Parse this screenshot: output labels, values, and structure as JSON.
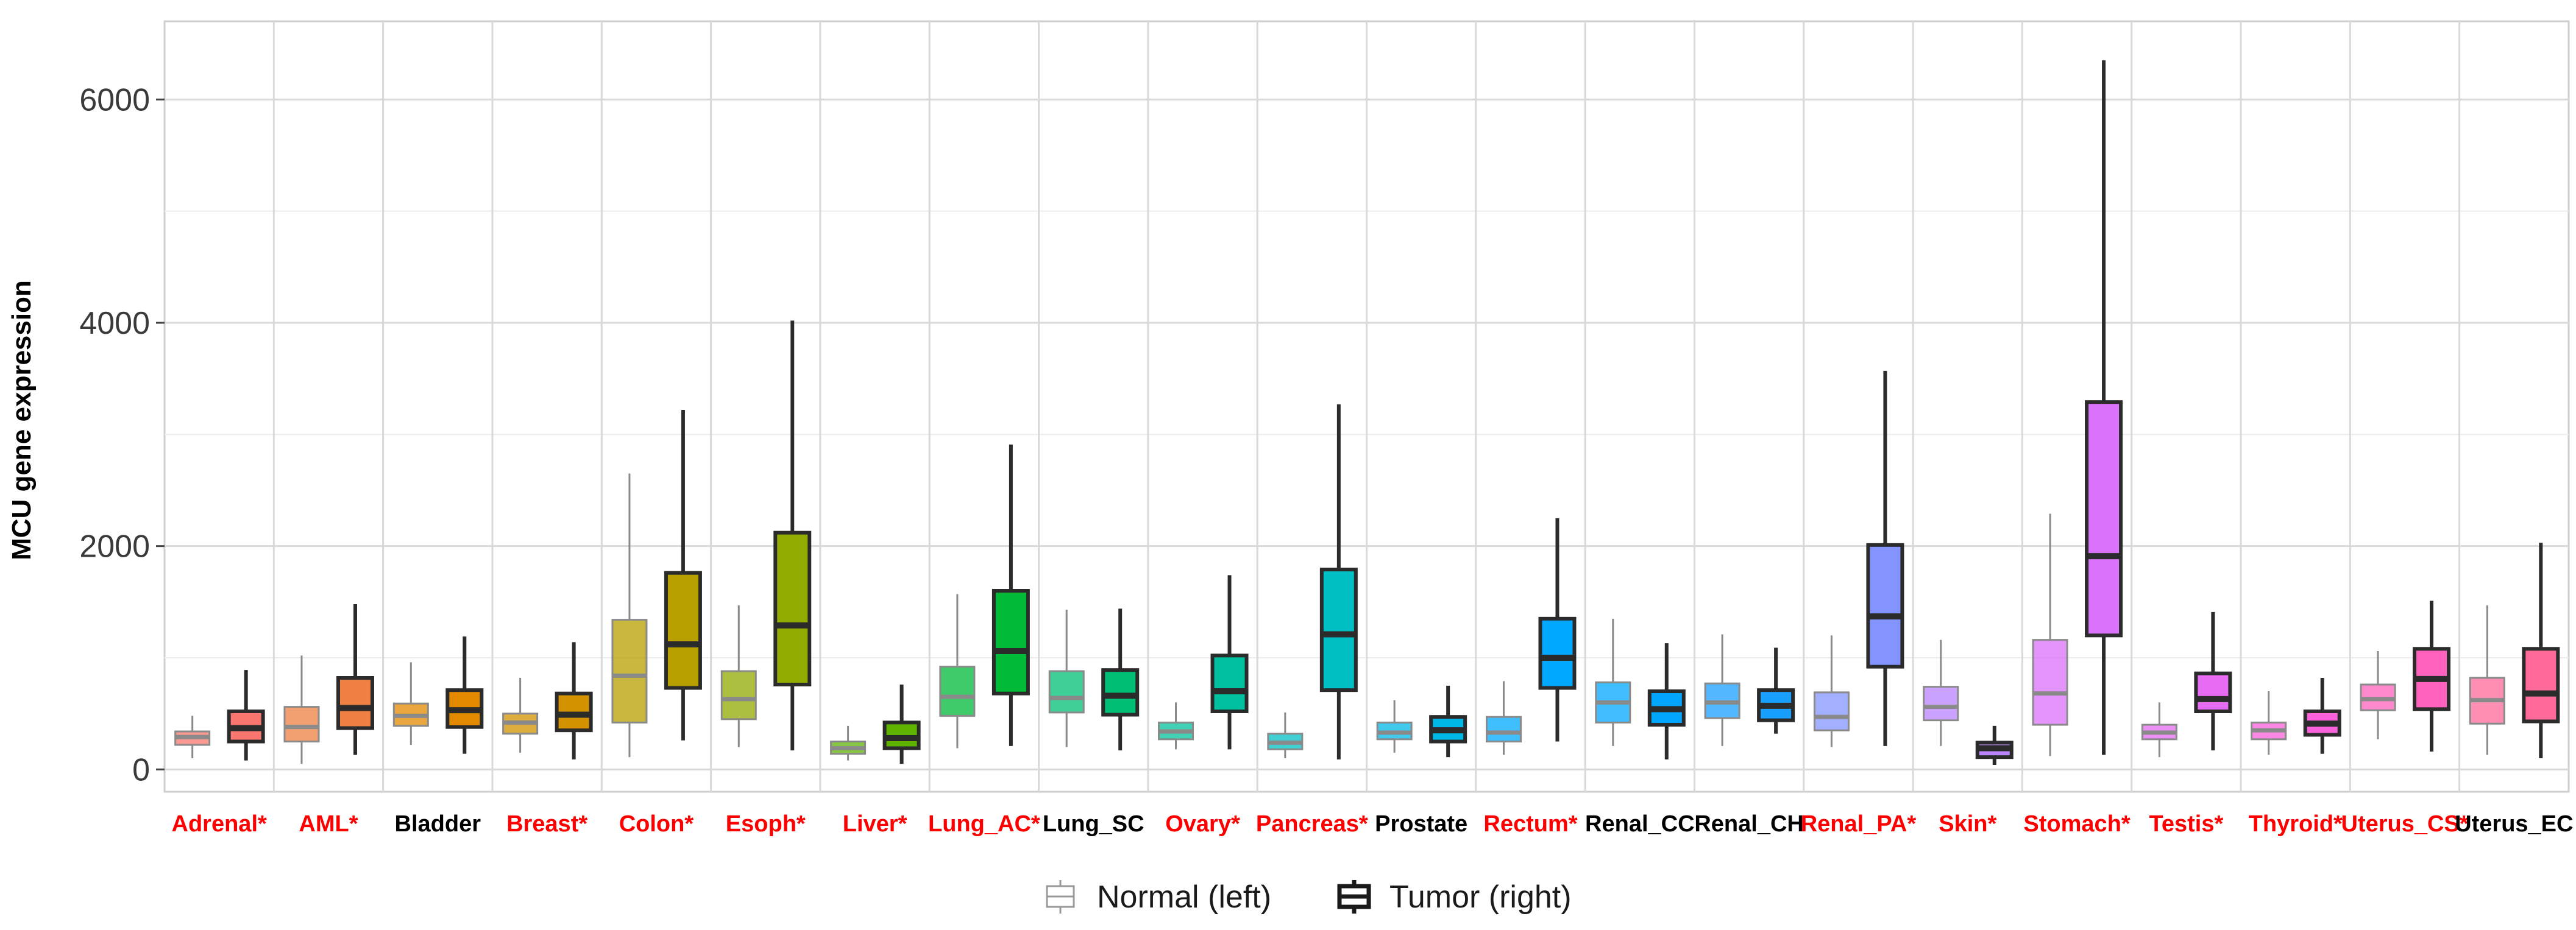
{
  "chart_data": {
    "type": "boxplot",
    "title": "",
    "xlabel": "",
    "ylabel": "MCU gene expression",
    "ylim": [
      -200,
      6700
    ],
    "yticks": [
      0,
      2000,
      4000,
      6000
    ],
    "ytick_labels": [
      "0",
      "2000",
      "4000",
      "6000"
    ],
    "grid": true,
    "legend_position": "bottom",
    "legend": {
      "normal_label": "Normal (left)",
      "tumor_label": "Tumor (right)"
    },
    "significant_color": "#ff0000",
    "default_label_color": "#000000",
    "categories": [
      {
        "name": "Adrenal*",
        "significant": true,
        "color": "#F8766D",
        "normal": {
          "min": 100,
          "q1": 220,
          "median": 290,
          "q3": 340,
          "max": 480
        },
        "tumor": {
          "min": 80,
          "q1": 250,
          "median": 370,
          "q3": 520,
          "max": 890
        }
      },
      {
        "name": "AML*",
        "significant": true,
        "color": "#EE8043",
        "normal": {
          "min": 50,
          "q1": 250,
          "median": 380,
          "q3": 560,
          "max": 1020
        },
        "tumor": {
          "min": 130,
          "q1": 370,
          "median": 550,
          "q3": 820,
          "max": 1480
        }
      },
      {
        "name": "Bladder",
        "significant": false,
        "color": "#E38900",
        "normal": {
          "min": 220,
          "q1": 390,
          "median": 480,
          "q3": 590,
          "max": 960
        },
        "tumor": {
          "min": 140,
          "q1": 380,
          "median": 530,
          "q3": 710,
          "max": 1190
        }
      },
      {
        "name": "Breast*",
        "significant": true,
        "color": "#D39200",
        "normal": {
          "min": 150,
          "q1": 320,
          "median": 420,
          "q3": 500,
          "max": 820
        },
        "tumor": {
          "min": 90,
          "q1": 350,
          "median": 490,
          "q3": 680,
          "max": 1140
        }
      },
      {
        "name": "Colon*",
        "significant": true,
        "color": "#B79F00",
        "normal": {
          "min": 110,
          "q1": 420,
          "median": 840,
          "q3": 1340,
          "max": 2650
        },
        "tumor": {
          "min": 260,
          "q1": 730,
          "median": 1120,
          "q3": 1760,
          "max": 3220
        }
      },
      {
        "name": "Esoph*",
        "significant": true,
        "color": "#93AA00",
        "normal": {
          "min": 200,
          "q1": 450,
          "median": 630,
          "q3": 880,
          "max": 1470
        },
        "tumor": {
          "min": 170,
          "q1": 760,
          "median": 1290,
          "q3": 2120,
          "max": 4020
        }
      },
      {
        "name": "Liver*",
        "significant": true,
        "color": "#5EB300",
        "normal": {
          "min": 80,
          "q1": 140,
          "median": 190,
          "q3": 250,
          "max": 390
        },
        "tumor": {
          "min": 50,
          "q1": 190,
          "median": 280,
          "q3": 420,
          "max": 760
        }
      },
      {
        "name": "Lung_AC*",
        "significant": true,
        "color": "#00BA38",
        "normal": {
          "min": 190,
          "q1": 480,
          "median": 650,
          "q3": 920,
          "max": 1570
        },
        "tumor": {
          "min": 210,
          "q1": 680,
          "median": 1060,
          "q3": 1600,
          "max": 2910
        }
      },
      {
        "name": "Lung_SC",
        "significant": false,
        "color": "#00BF74",
        "normal": {
          "min": 200,
          "q1": 510,
          "median": 640,
          "q3": 880,
          "max": 1430
        },
        "tumor": {
          "min": 170,
          "q1": 490,
          "median": 660,
          "q3": 890,
          "max": 1440
        }
      },
      {
        "name": "Ovary*",
        "significant": true,
        "color": "#00C19F",
        "normal": {
          "min": 180,
          "q1": 270,
          "median": 340,
          "q3": 420,
          "max": 600
        },
        "tumor": {
          "min": 180,
          "q1": 520,
          "median": 700,
          "q3": 1020,
          "max": 1740
        }
      },
      {
        "name": "Pancreas*",
        "significant": true,
        "color": "#00BFC4",
        "normal": {
          "min": 100,
          "q1": 180,
          "median": 240,
          "q3": 320,
          "max": 510
        },
        "tumor": {
          "min": 90,
          "q1": 710,
          "median": 1210,
          "q3": 1790,
          "max": 3270
        }
      },
      {
        "name": "Prostate",
        "significant": false,
        "color": "#00B8E7",
        "normal": {
          "min": 150,
          "q1": 270,
          "median": 330,
          "q3": 420,
          "max": 620
        },
        "tumor": {
          "min": 110,
          "q1": 250,
          "median": 350,
          "q3": 470,
          "max": 750
        }
      },
      {
        "name": "Rectum*",
        "significant": true,
        "color": "#00A9FF",
        "normal": {
          "min": 130,
          "q1": 250,
          "median": 330,
          "q3": 470,
          "max": 790
        },
        "tumor": {
          "min": 250,
          "q1": 730,
          "median": 1000,
          "q3": 1350,
          "max": 2250
        }
      },
      {
        "name": "Renal_CC",
        "significant": false,
        "color": "#00A5FF",
        "normal": {
          "min": 210,
          "q1": 420,
          "median": 600,
          "q3": 780,
          "max": 1350
        },
        "tumor": {
          "min": 90,
          "q1": 400,
          "median": 540,
          "q3": 700,
          "max": 1130
        }
      },
      {
        "name": "Renal_CH",
        "significant": false,
        "color": "#19A0FF",
        "normal": {
          "min": 210,
          "q1": 460,
          "median": 600,
          "q3": 770,
          "max": 1210
        },
        "tumor": {
          "min": 320,
          "q1": 440,
          "median": 570,
          "q3": 710,
          "max": 1090
        }
      },
      {
        "name": "Renal_PA*",
        "significant": true,
        "color": "#8494FF",
        "normal": {
          "min": 200,
          "q1": 350,
          "median": 470,
          "q3": 690,
          "max": 1200
        },
        "tumor": {
          "min": 210,
          "q1": 920,
          "median": 1370,
          "q3": 2010,
          "max": 3570
        }
      },
      {
        "name": "Skin*",
        "significant": true,
        "color": "#B983FF",
        "normal": {
          "min": 210,
          "q1": 440,
          "median": 560,
          "q3": 740,
          "max": 1160
        },
        "tumor": {
          "min": 40,
          "q1": 110,
          "median": 190,
          "q3": 240,
          "max": 390
        }
      },
      {
        "name": "Stomach*",
        "significant": true,
        "color": "#DB72FB",
        "normal": {
          "min": 120,
          "q1": 400,
          "median": 680,
          "q3": 1160,
          "max": 2290
        },
        "tumor": {
          "min": 130,
          "q1": 1200,
          "median": 1910,
          "q3": 3290,
          "max": 6350
        }
      },
      {
        "name": "Testis*",
        "significant": true,
        "color": "#E76BF3",
        "normal": {
          "min": 110,
          "q1": 270,
          "median": 330,
          "q3": 400,
          "max": 600
        },
        "tumor": {
          "min": 170,
          "q1": 520,
          "median": 630,
          "q3": 860,
          "max": 1410
        }
      },
      {
        "name": "Thyroid*",
        "significant": true,
        "color": "#FA62DB",
        "normal": {
          "min": 130,
          "q1": 270,
          "median": 350,
          "q3": 420,
          "max": 700
        },
        "tumor": {
          "min": 140,
          "q1": 310,
          "median": 410,
          "q3": 520,
          "max": 820
        }
      },
      {
        "name": "Uterus_CS*",
        "significant": true,
        "color": "#FF62BC",
        "normal": {
          "min": 270,
          "q1": 530,
          "median": 630,
          "q3": 760,
          "max": 1060
        },
        "tumor": {
          "min": 160,
          "q1": 540,
          "median": 810,
          "q3": 1080,
          "max": 1510
        }
      },
      {
        "name": "Uterus_EC",
        "significant": false,
        "color": "#FF6A98",
        "normal": {
          "min": 130,
          "q1": 410,
          "median": 620,
          "q3": 820,
          "max": 1470
        },
        "tumor": {
          "min": 100,
          "q1": 430,
          "median": 680,
          "q3": 1080,
          "max": 2030
        }
      }
    ]
  }
}
